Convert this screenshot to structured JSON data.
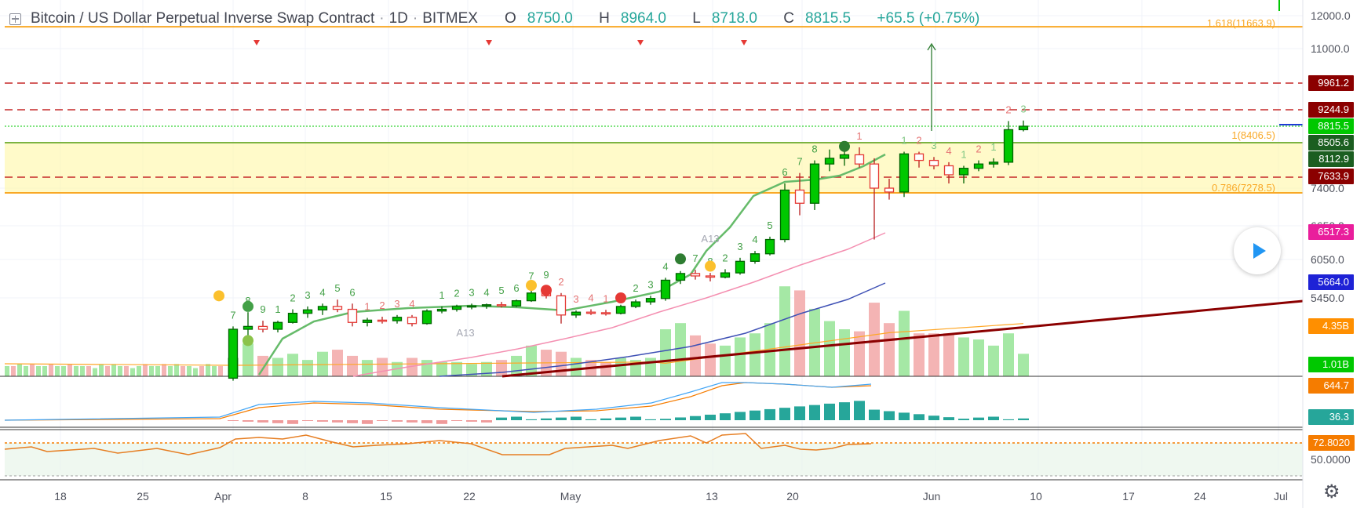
{
  "header": {
    "symbol": "Bitcoin / US Dollar Perpetual Inverse Swap Contract",
    "interval": "1D",
    "exchange": "BITMEX",
    "o_label": "O",
    "o_value": "8750.0",
    "h_label": "H",
    "h_value": "8964.0",
    "l_label": "L",
    "l_value": "8718.0",
    "c_label": "C",
    "c_value": "8815.5",
    "change": "+65.5 (+0.75%)"
  },
  "colors": {
    "up": "#00c800",
    "down": "#e53935",
    "vol_up": "#a5e8a5",
    "vol_down": "#f4b4b4",
    "ma_green": "#66bb6a",
    "ma_pink": "#f48fb1",
    "ma_blue": "#3f51b5",
    "ma_orange": "#ffa726",
    "trend": "#8b0000",
    "zone": "#fff59d",
    "fib": "#f9a825",
    "accent": "#2196f3"
  },
  "chart_data": {
    "type": "candlestick",
    "title": "Bitcoin / US Dollar Perpetual Inverse Swap Contract · 1D · BITMEX",
    "price_axis_ticks": [
      "12000.0",
      "11000.0",
      "7400.0",
      "6650.0",
      "6050.0",
      "5450.0",
      "50.0000"
    ],
    "time_axis_ticks": [
      "18",
      "25",
      "Apr",
      "8",
      "15",
      "22",
      "May",
      "13",
      "20",
      "Jun",
      "10",
      "17",
      "24",
      "Jul"
    ],
    "start_date": "2019-04-01",
    "candles": [
      {
        "o": 4120,
        "h": 4950,
        "l": 4080,
        "c": 4900
      },
      {
        "o": 4900,
        "h": 5200,
        "l": 4750,
        "c": 4950
      },
      {
        "o": 4950,
        "h": 5050,
        "l": 4850,
        "c": 4900
      },
      {
        "o": 4900,
        "h": 5050,
        "l": 4850,
        "c": 5020
      },
      {
        "o": 5020,
        "h": 5250,
        "l": 5000,
        "c": 5180
      },
      {
        "o": 5180,
        "h": 5300,
        "l": 5100,
        "c": 5240
      },
      {
        "o": 5240,
        "h": 5350,
        "l": 5150,
        "c": 5300
      },
      {
        "o": 5300,
        "h": 5420,
        "l": 5200,
        "c": 5250
      },
      {
        "o": 5250,
        "h": 5350,
        "l": 4950,
        "c": 5020
      },
      {
        "o": 5020,
        "h": 5100,
        "l": 4950,
        "c": 5060
      },
      {
        "o": 5060,
        "h": 5120,
        "l": 5000,
        "c": 5050
      },
      {
        "o": 5050,
        "h": 5150,
        "l": 5000,
        "c": 5110
      },
      {
        "o": 5110,
        "h": 5150,
        "l": 4950,
        "c": 5000
      },
      {
        "o": 5000,
        "h": 5250,
        "l": 4980,
        "c": 5220
      },
      {
        "o": 5220,
        "h": 5300,
        "l": 5180,
        "c": 5250
      },
      {
        "o": 5250,
        "h": 5330,
        "l": 5210,
        "c": 5300
      },
      {
        "o": 5300,
        "h": 5350,
        "l": 5250,
        "c": 5310
      },
      {
        "o": 5310,
        "h": 5350,
        "l": 5260,
        "c": 5330
      },
      {
        "o": 5330,
        "h": 5380,
        "l": 5280,
        "c": 5310
      },
      {
        "o": 5310,
        "h": 5420,
        "l": 5290,
        "c": 5400
      },
      {
        "o": 5400,
        "h": 5600,
        "l": 5380,
        "c": 5520
      },
      {
        "o": 5520,
        "h": 5620,
        "l": 5440,
        "c": 5480
      },
      {
        "o": 5480,
        "h": 5520,
        "l": 5000,
        "c": 5150
      },
      {
        "o": 5150,
        "h": 5230,
        "l": 5100,
        "c": 5200
      },
      {
        "o": 5200,
        "h": 5250,
        "l": 5150,
        "c": 5190
      },
      {
        "o": 5190,
        "h": 5240,
        "l": 5140,
        "c": 5180
      },
      {
        "o": 5180,
        "h": 5330,
        "l": 5160,
        "c": 5300
      },
      {
        "o": 5300,
        "h": 5420,
        "l": 5270,
        "c": 5380
      },
      {
        "o": 5380,
        "h": 5480,
        "l": 5330,
        "c": 5440
      },
      {
        "o": 5440,
        "h": 5750,
        "l": 5400,
        "c": 5710
      },
      {
        "o": 5710,
        "h": 5860,
        "l": 5650,
        "c": 5820
      },
      {
        "o": 5820,
        "h": 5880,
        "l": 5720,
        "c": 5780
      },
      {
        "o": 5780,
        "h": 5830,
        "l": 5690,
        "c": 5760
      },
      {
        "o": 5760,
        "h": 5890,
        "l": 5740,
        "c": 5830
      },
      {
        "o": 5830,
        "h": 6080,
        "l": 5800,
        "c": 6020
      },
      {
        "o": 6020,
        "h": 6200,
        "l": 5980,
        "c": 6150
      },
      {
        "o": 6150,
        "h": 6450,
        "l": 6120,
        "c": 6400
      },
      {
        "o": 6400,
        "h": 7500,
        "l": 6350,
        "c": 7350
      },
      {
        "o": 7350,
        "h": 7750,
        "l": 6850,
        "c": 7080
      },
      {
        "o": 7080,
        "h": 8100,
        "l": 6950,
        "c": 8000
      },
      {
        "o": 8000,
        "h": 8350,
        "l": 7800,
        "c": 8150
      },
      {
        "o": 8150,
        "h": 8350,
        "l": 7950,
        "c": 8230
      },
      {
        "o": 8230,
        "h": 8400,
        "l": 7900,
        "c": 8000
      },
      {
        "o": 8000,
        "h": 8150,
        "l": 6400,
        "c": 7400
      },
      {
        "o": 7400,
        "h": 7600,
        "l": 7150,
        "c": 7300
      },
      {
        "o": 7300,
        "h": 8300,
        "l": 7200,
        "c": 8250
      },
      {
        "o": 8250,
        "h": 8300,
        "l": 7900,
        "c": 8100
      },
      {
        "o": 8100,
        "h": 8180,
        "l": 7850,
        "c": 7950
      },
      {
        "o": 7950,
        "h": 8050,
        "l": 7500,
        "c": 7700
      },
      {
        "o": 7700,
        "h": 7950,
        "l": 7500,
        "c": 7880
      },
      {
        "o": 7880,
        "h": 8100,
        "l": 7800,
        "c": 8000
      },
      {
        "o": 8000,
        "h": 8150,
        "l": 7900,
        "c": 8050
      },
      {
        "o": 8050,
        "h": 8950,
        "l": 7970,
        "c": 8750
      },
      {
        "o": 8750,
        "h": 8964,
        "l": 8718,
        "c": 8815.5
      }
    ],
    "volume": [
      0.9,
      1.6,
      1.0,
      0.9,
      1.1,
      0.8,
      1.2,
      1.3,
      1.0,
      0.8,
      0.9,
      0.7,
      0.9,
      0.8,
      0.7,
      0.7,
      0.6,
      0.7,
      0.8,
      1.0,
      1.5,
      1.3,
      1.2,
      0.9,
      0.8,
      0.7,
      0.9,
      0.8,
      0.9,
      2.3,
      2.6,
      2.0,
      1.6,
      1.5,
      1.9,
      2.1,
      2.6,
      4.4,
      4.2,
      3.3,
      2.7,
      2.3,
      2.2,
      3.6,
      2.6,
      3.2,
      2.1,
      2.1,
      2.1,
      1.9,
      1.8,
      1.5,
      2.1,
      1.1
    ],
    "early_volume": [
      0.5,
      0.5,
      0.6,
      0.5,
      0.6,
      0.5,
      0.5,
      0.6,
      0.5,
      0.5,
      0.6,
      0.5,
      0.5,
      0.5,
      0.4,
      0.6,
      0.5,
      0.6,
      0.5,
      0.5,
      0.4,
      0.5,
      0.6,
      0.5,
      0.5,
      0.6,
      0.5,
      0.6,
      0.5,
      0.5,
      0.4,
      0.5,
      0.6,
      0.5,
      0.5
    ],
    "levels": [
      {
        "price": 11663.9,
        "tag": "1.618(11663.9)",
        "style": "fib"
      },
      {
        "price": 9961.2,
        "tag": "9961.2",
        "style": "red-dash"
      },
      {
        "price": 9244.9,
        "tag": "9244.9",
        "style": "red-dash"
      },
      {
        "price": 8815.5,
        "tag": "8815.5",
        "style": "green-dot"
      },
      {
        "price": 8505.6,
        "tag": "8505.6",
        "style": "green"
      },
      {
        "price": 8112.9,
        "tag": "8112.9",
        "style": "green"
      },
      {
        "price": 7633.9,
        "tag": "7633.9",
        "style": "red-dash"
      },
      {
        "price": 7278.5,
        "tag": "0.786(7278.5)",
        "style": "fib"
      },
      {
        "price": 6517.3,
        "tag": "6517.3",
        "style": "pink"
      },
      {
        "price": 5664.0,
        "tag": "5664.0",
        "style": "blue"
      }
    ],
    "annotations": {
      "fib_mid": "1(8406.5)",
      "a13": "A13"
    },
    "tags": {
      "vol_ma": "4.35B",
      "vol": "1.01B",
      "macd": "644.7",
      "macd_hist": "36.3",
      "rsi": "72.8020",
      "rsi_ref": "50.0000"
    }
  }
}
